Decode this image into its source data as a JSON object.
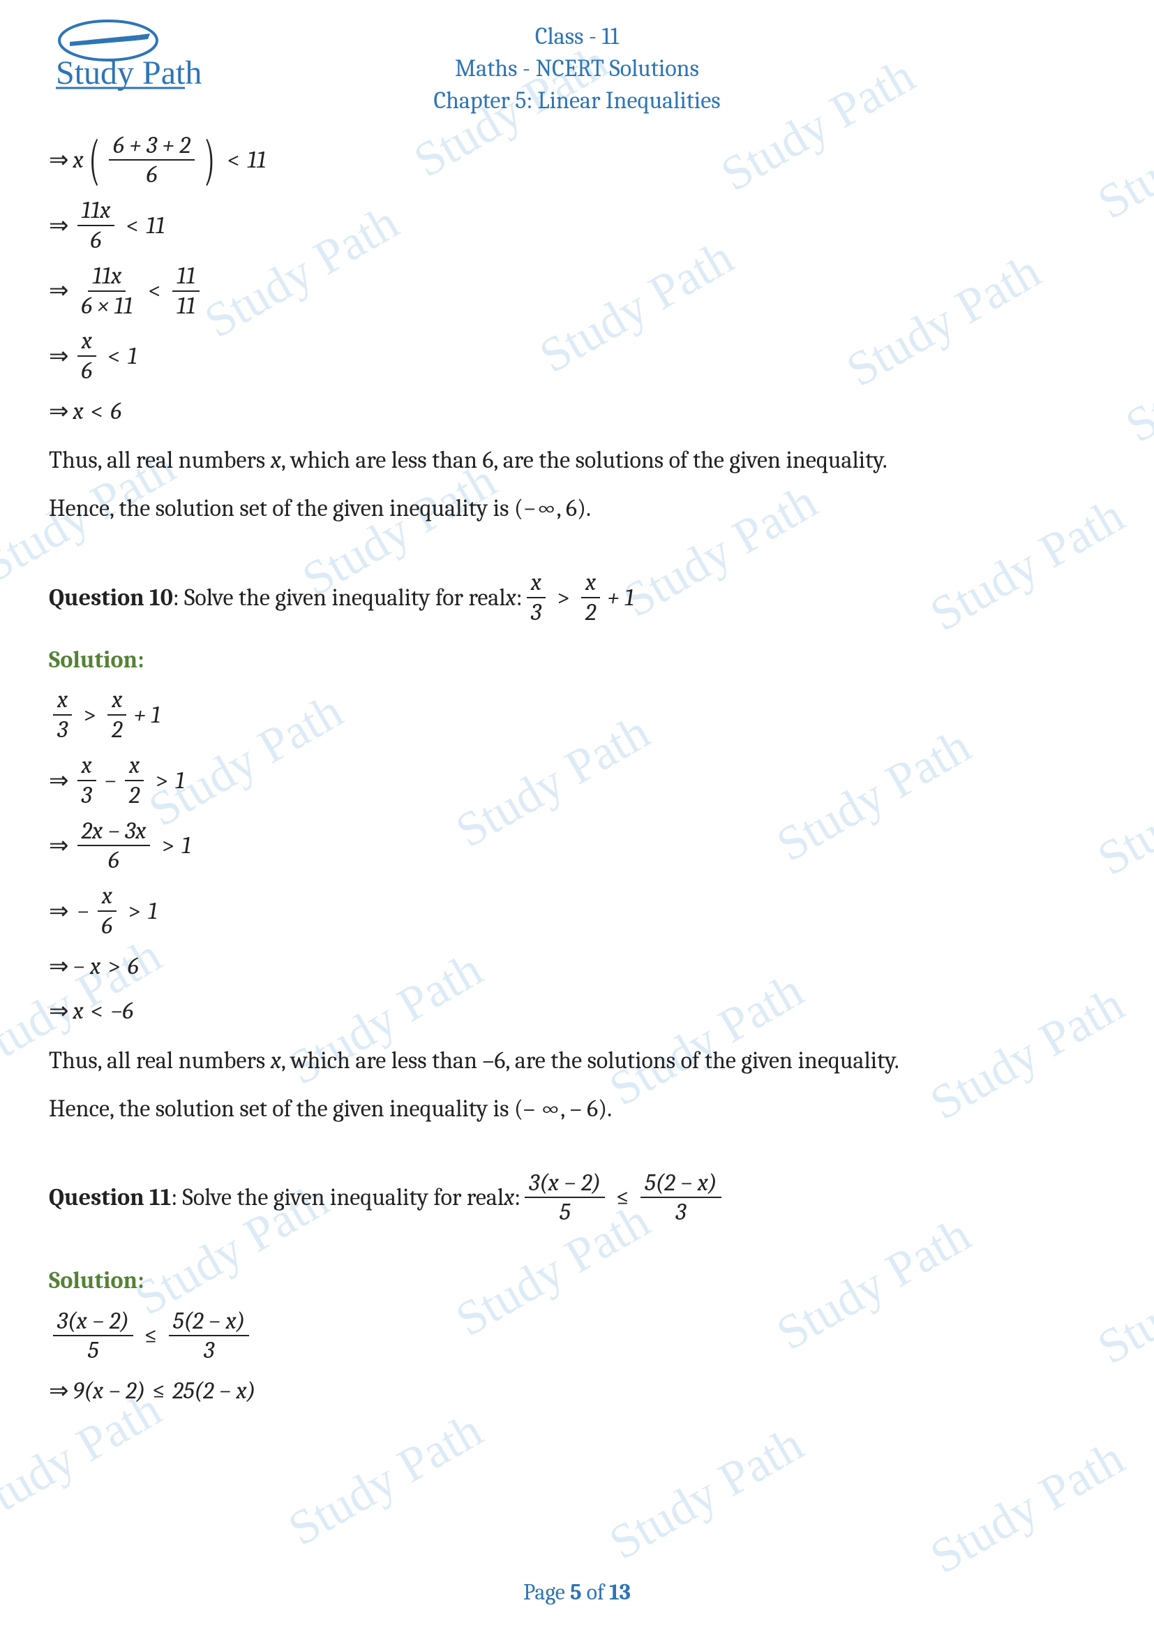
{
  "header": {
    "line1": "Class - 11",
    "line2": "Maths - NCERT Solutions",
    "line3": "Chapter 5: Linear Inequalities",
    "logo_text": "Study Path",
    "title_color": "#2e75b6"
  },
  "watermark": {
    "text": "Study Path",
    "color_rgba": "rgba(180,210,235,0.45)",
    "rotation_deg": -30,
    "positions": [
      [
        580,
        120
      ],
      [
        1020,
        140
      ],
      [
        1560,
        180
      ],
      [
        280,
        350
      ],
      [
        760,
        400
      ],
      [
        1200,
        420
      ],
      [
        1600,
        500
      ],
      [
        -40,
        700
      ],
      [
        420,
        720
      ],
      [
        880,
        750
      ],
      [
        1320,
        770
      ],
      [
        200,
        1050
      ],
      [
        640,
        1080
      ],
      [
        1100,
        1100
      ],
      [
        1560,
        1120
      ],
      [
        -60,
        1400
      ],
      [
        400,
        1420
      ],
      [
        860,
        1450
      ],
      [
        1320,
        1470
      ],
      [
        180,
        1750
      ],
      [
        640,
        1780
      ],
      [
        1100,
        1800
      ],
      [
        1560,
        1820
      ],
      [
        -60,
        2050
      ],
      [
        400,
        2080
      ],
      [
        860,
        2100
      ],
      [
        1320,
        2120
      ]
    ]
  },
  "solution_color": "#548235",
  "text_color": "#222222",
  "q9_continuation": {
    "step1": {
      "lhs_var": "x",
      "frac_num": "6 + 3 + 2",
      "frac_den": "6",
      "op": "<",
      "rhs": "11"
    },
    "step2": {
      "frac_num": "11x",
      "frac_den": "6",
      "op": "<",
      "rhs": "11"
    },
    "step3": {
      "l_num": "11x",
      "l_den": "6 × 11",
      "op": "<",
      "r_num": "11",
      "r_den": "11"
    },
    "step4": {
      "frac_num": "x",
      "frac_den": "6",
      "op": "<",
      "rhs": "1"
    },
    "step5": {
      "lhs": "x",
      "op": "<",
      "rhs": "6"
    },
    "conclusion1_pre": "Thus, all real numbers ",
    "conclusion1_var": "x",
    "conclusion1_post": ", which are less than 6, are the solutions of the given inequality.",
    "conclusion2": "Hence, the solution set of the given inequality is (−∞, 6)."
  },
  "q10": {
    "label": "Question 10",
    "prompt_pre": ": Solve the given inequality for real ",
    "prompt_var": "x",
    "prompt_post": ":   ",
    "ineq": {
      "l_num": "x",
      "l_den": "3",
      "op": ">",
      "r_num": "x",
      "r_den": "2",
      "tail": "+ 1"
    },
    "solution_label": "Solution:",
    "step1": {
      "l_num": "x",
      "l_den": "3",
      "op": ">",
      "r_num": "x",
      "r_den": "2",
      "tail": "+ 1"
    },
    "step2": {
      "a_num": "x",
      "a_den": "3",
      "minus": "−",
      "b_num": "x",
      "b_den": "2",
      "op": ">",
      "rhs": "1"
    },
    "step3": {
      "frac_num": "2x − 3x",
      "frac_den": "6",
      "op": ">",
      "rhs": "1"
    },
    "step4": {
      "neg": "−",
      "frac_num": "x",
      "frac_den": "6",
      "op": ">",
      "rhs": "1"
    },
    "step5": {
      "lhs": "− x",
      "op": ">",
      "rhs": "6"
    },
    "step6": {
      "lhs": "x",
      "op": "<",
      "rhs": "−6"
    },
    "conclusion1_pre": "Thus, all real numbers ",
    "conclusion1_var": "x",
    "conclusion1_post": ", which are less than –6, are the solutions of the given inequality.",
    "conclusion2": "Hence, the solution set of the given inequality is (– ∞, – 6)."
  },
  "q11": {
    "label": "Question 11",
    "prompt_pre": ": Solve the given inequality for real ",
    "prompt_var": "x",
    "prompt_post": ": ",
    "ineq": {
      "l_num": "3(x − 2)",
      "l_den": "5",
      "op": "≤",
      "r_num": "5(2 − x)",
      "r_den": "3"
    },
    "solution_label": "Solution:",
    "step1": {
      "l_num": "3(x − 2)",
      "l_den": "5",
      "op": "≤",
      "r_num": "5(2 − x)",
      "r_den": "3"
    },
    "step2": {
      "lhs": "9(x − 2)",
      "op": "≤",
      "rhs": "25(2 − x)"
    }
  },
  "footer": {
    "pre": "Page ",
    "current": "5",
    "mid": " of ",
    "total": "13"
  }
}
